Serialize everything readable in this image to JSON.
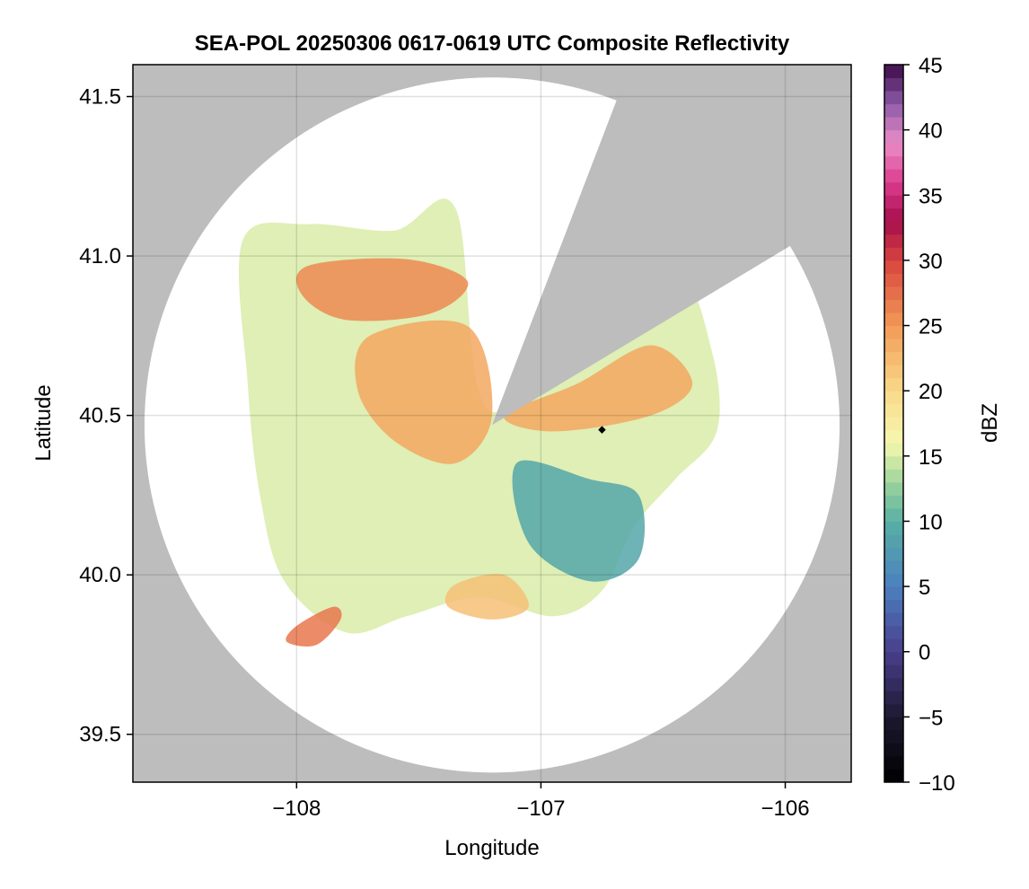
{
  "chart_data": {
    "type": "heatmap",
    "title": "SEA-POL 20250306 0617-0619 UTC Composite Reflectivity",
    "xlabel": "Longitude",
    "ylabel": "Latitude",
    "xlim": [
      -108.67,
      -105.73
    ],
    "ylim": [
      39.35,
      41.6
    ],
    "x_ticks": [
      -108,
      -107,
      -106
    ],
    "x_tick_labels": [
      "−108",
      "−107",
      "−106"
    ],
    "y_ticks": [
      39.5,
      40.0,
      40.5,
      41.0,
      41.5
    ],
    "y_tick_labels": [
      "39.5",
      "40.0",
      "40.5",
      "41.0",
      "41.5"
    ],
    "grid": true,
    "background_color": "#bdbdbd",
    "radar_site": {
      "lon": -107.2,
      "lat": 40.47
    },
    "range_radius_deg_lat": 1.09,
    "blocked_sector_azimuth_deg": [
      21,
      59
    ],
    "marker": {
      "lon": -106.75,
      "lat": 40.455,
      "color": "#000000"
    },
    "colorbar": {
      "label": "dBZ",
      "min": -10,
      "max": 45,
      "ticks": [
        -10,
        -5,
        0,
        5,
        10,
        15,
        20,
        25,
        30,
        35,
        40,
        45
      ],
      "tick_labels": [
        "−10",
        "−5",
        "0",
        "5",
        "10",
        "15",
        "20",
        "25",
        "30",
        "35",
        "40",
        "45"
      ],
      "colormap": "Spectral (reversed)",
      "stops": [
        {
          "v": -10,
          "c": "#000000"
        },
        {
          "v": -5,
          "c": "#1c1830"
        },
        {
          "v": 0,
          "c": "#4a3f8c"
        },
        {
          "v": 5,
          "c": "#4b7fbf"
        },
        {
          "v": 10,
          "c": "#58b0a4"
        },
        {
          "v": 13,
          "c": "#9ed49c"
        },
        {
          "v": 16,
          "c": "#f6f8ae"
        },
        {
          "v": 20,
          "c": "#f9d98a"
        },
        {
          "v": 25,
          "c": "#f29a56"
        },
        {
          "v": 30,
          "c": "#d8433f"
        },
        {
          "v": 33,
          "c": "#a50e4b"
        },
        {
          "v": 36,
          "c": "#dc3b8f"
        },
        {
          "v": 39,
          "c": "#e98ec6"
        },
        {
          "v": 42,
          "c": "#8e5aa8"
        },
        {
          "v": 45,
          "c": "#3c0a48"
        }
      ]
    },
    "echo_regions": [
      {
        "name": "main-echo",
        "dbz": 15,
        "lon": [
          -108.22,
          -107.95,
          -107.6,
          -107.35,
          -107.22,
          -106.8,
          -106.45,
          -106.3,
          -106.28,
          -106.45,
          -106.62,
          -106.75,
          -106.95,
          -107.25,
          -107.55,
          -107.8,
          -108.05,
          -108.15,
          -108.2
        ],
        "lat": [
          41.05,
          41.1,
          41.08,
          41.15,
          40.52,
          40.78,
          40.95,
          40.7,
          40.45,
          40.3,
          40.15,
          39.95,
          39.87,
          39.93,
          39.87,
          39.82,
          39.98,
          40.25,
          40.6
        ]
      },
      {
        "name": "north-band",
        "dbz": 26,
        "lon": [
          -107.95,
          -107.55,
          -107.3,
          -107.45,
          -107.8,
          -107.98
        ],
        "lat": [
          40.97,
          40.99,
          40.92,
          40.82,
          40.8,
          40.88
        ]
      },
      {
        "name": "central-core",
        "dbz": 24,
        "lon": [
          -107.7,
          -107.3,
          -107.2,
          -107.35,
          -107.6,
          -107.75
        ],
        "lat": [
          40.75,
          40.78,
          40.5,
          40.35,
          40.42,
          40.58
        ]
      },
      {
        "name": "east-band",
        "dbz": 24,
        "lon": [
          -107.15,
          -106.85,
          -106.55,
          -106.38,
          -106.55,
          -106.95
        ],
        "lat": [
          40.5,
          40.6,
          40.72,
          40.6,
          40.5,
          40.45
        ]
      },
      {
        "name": "southeast-low",
        "dbz": 9,
        "lon": [
          -107.1,
          -106.8,
          -106.6,
          -106.6,
          -106.8,
          -107.05
        ],
        "lat": [
          40.35,
          40.3,
          40.25,
          40.05,
          39.98,
          40.1
        ]
      },
      {
        "name": "southwest-cell",
        "dbz": 27,
        "lon": [
          -108.0,
          -107.85,
          -107.82,
          -107.92,
          -108.04
        ],
        "lat": [
          39.84,
          39.9,
          39.86,
          39.78,
          39.79
        ]
      },
      {
        "name": "south-cell",
        "dbz": 22,
        "lon": [
          -107.35,
          -107.15,
          -107.05,
          -107.2,
          -107.38
        ],
        "lat": [
          39.97,
          40.0,
          39.9,
          39.86,
          39.9
        ]
      }
    ]
  }
}
